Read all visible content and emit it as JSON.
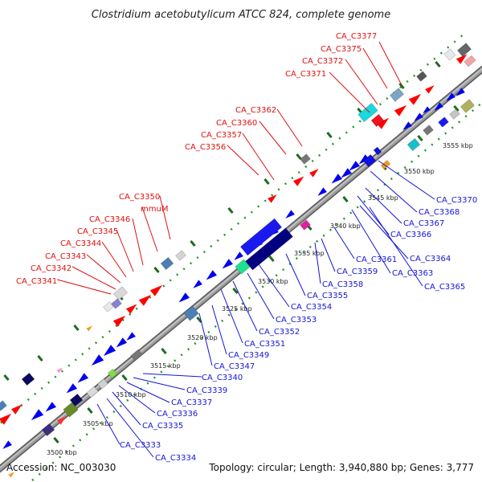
{
  "title": "Clostridium acetobutylicum ATCC 824, complete genome",
  "footer": {
    "accession": "Accession: NC_003030",
    "summary": "Topology: circular; Length: 3,940,880 bp; Genes: 3,777"
  },
  "colors": {
    "backbone": "#8a8a8a",
    "forward_label": "#e01010",
    "reverse_label": "#1515d8",
    "forward_gene": "#ff0000",
    "reverse_gene": "#0000ee",
    "dots": "#229922"
  },
  "kbp_labels": [
    "3500 kbp",
    "3505 kbp",
    "3510 kbp",
    "3515 kbp",
    "3520 kbp",
    "3525 kbp",
    "3530 kbp",
    "3535 kbp",
    "3540 kbp",
    "3545 kbp",
    "3550 kbp",
    "3555 kbp"
  ],
  "forward_labels": [
    "CA_C3377",
    "CA_C3375",
    "CA_C3372",
    "CA_C3371",
    "CA_C3362",
    "CA_C3360",
    "CA_C3357",
    "CA_C3356",
    "CA_C3350",
    "mmuM",
    "CA_C3346",
    "CA_C3345",
    "CA_C3344",
    "CA_C3343",
    "CA_C3342",
    "CA_C3341"
  ],
  "reverse_labels": [
    "CA_C3370",
    "CA_C3368",
    "CA_C3367",
    "CA_C3366",
    "CA_C3364",
    "CA_C3361",
    "CA_C3363",
    "CA_C3365",
    "CA_C3359",
    "CA_C3358",
    "CA_C3355",
    "CA_C3354",
    "CA_C3353",
    "CA_C3352",
    "CA_C3351",
    "CA_C3349",
    "CA_C3347",
    "CA_C3340",
    "CA_C3339",
    "CA_C3337",
    "CA_C3336",
    "CA_C3335",
    "CA_C3333",
    "CA_C3334"
  ]
}
